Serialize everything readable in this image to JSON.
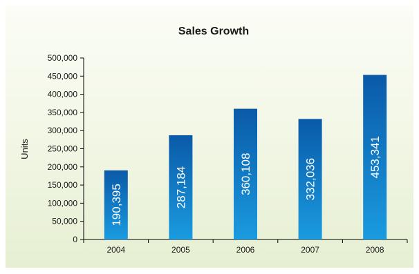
{
  "chart_data": {
    "type": "bar",
    "title": "Sales Growth",
    "xlabel": "",
    "ylabel": "Units",
    "categories": [
      "2004",
      "2005",
      "2006",
      "2007",
      "2008"
    ],
    "values": [
      190395,
      287184,
      360108,
      332036,
      453341
    ],
    "value_labels": [
      "190,395",
      "287,184",
      "360,108",
      "332,036",
      "453,341"
    ],
    "ylim": [
      0,
      500000
    ],
    "yticks": [
      0,
      50000,
      100000,
      150000,
      200000,
      250000,
      300000,
      350000,
      400000,
      450000,
      500000
    ],
    "ytick_labels": [
      "0",
      "50,000",
      "100,000",
      "150,000",
      "200,000",
      "250,000",
      "300,000",
      "350,000",
      "400,000",
      "450,000",
      "500,000"
    ],
    "grid": false,
    "legend": "none",
    "bar_color_top": "#0a5aa8",
    "bar_color_bottom": "#1a9be0",
    "background_color": "#eef4dd"
  }
}
